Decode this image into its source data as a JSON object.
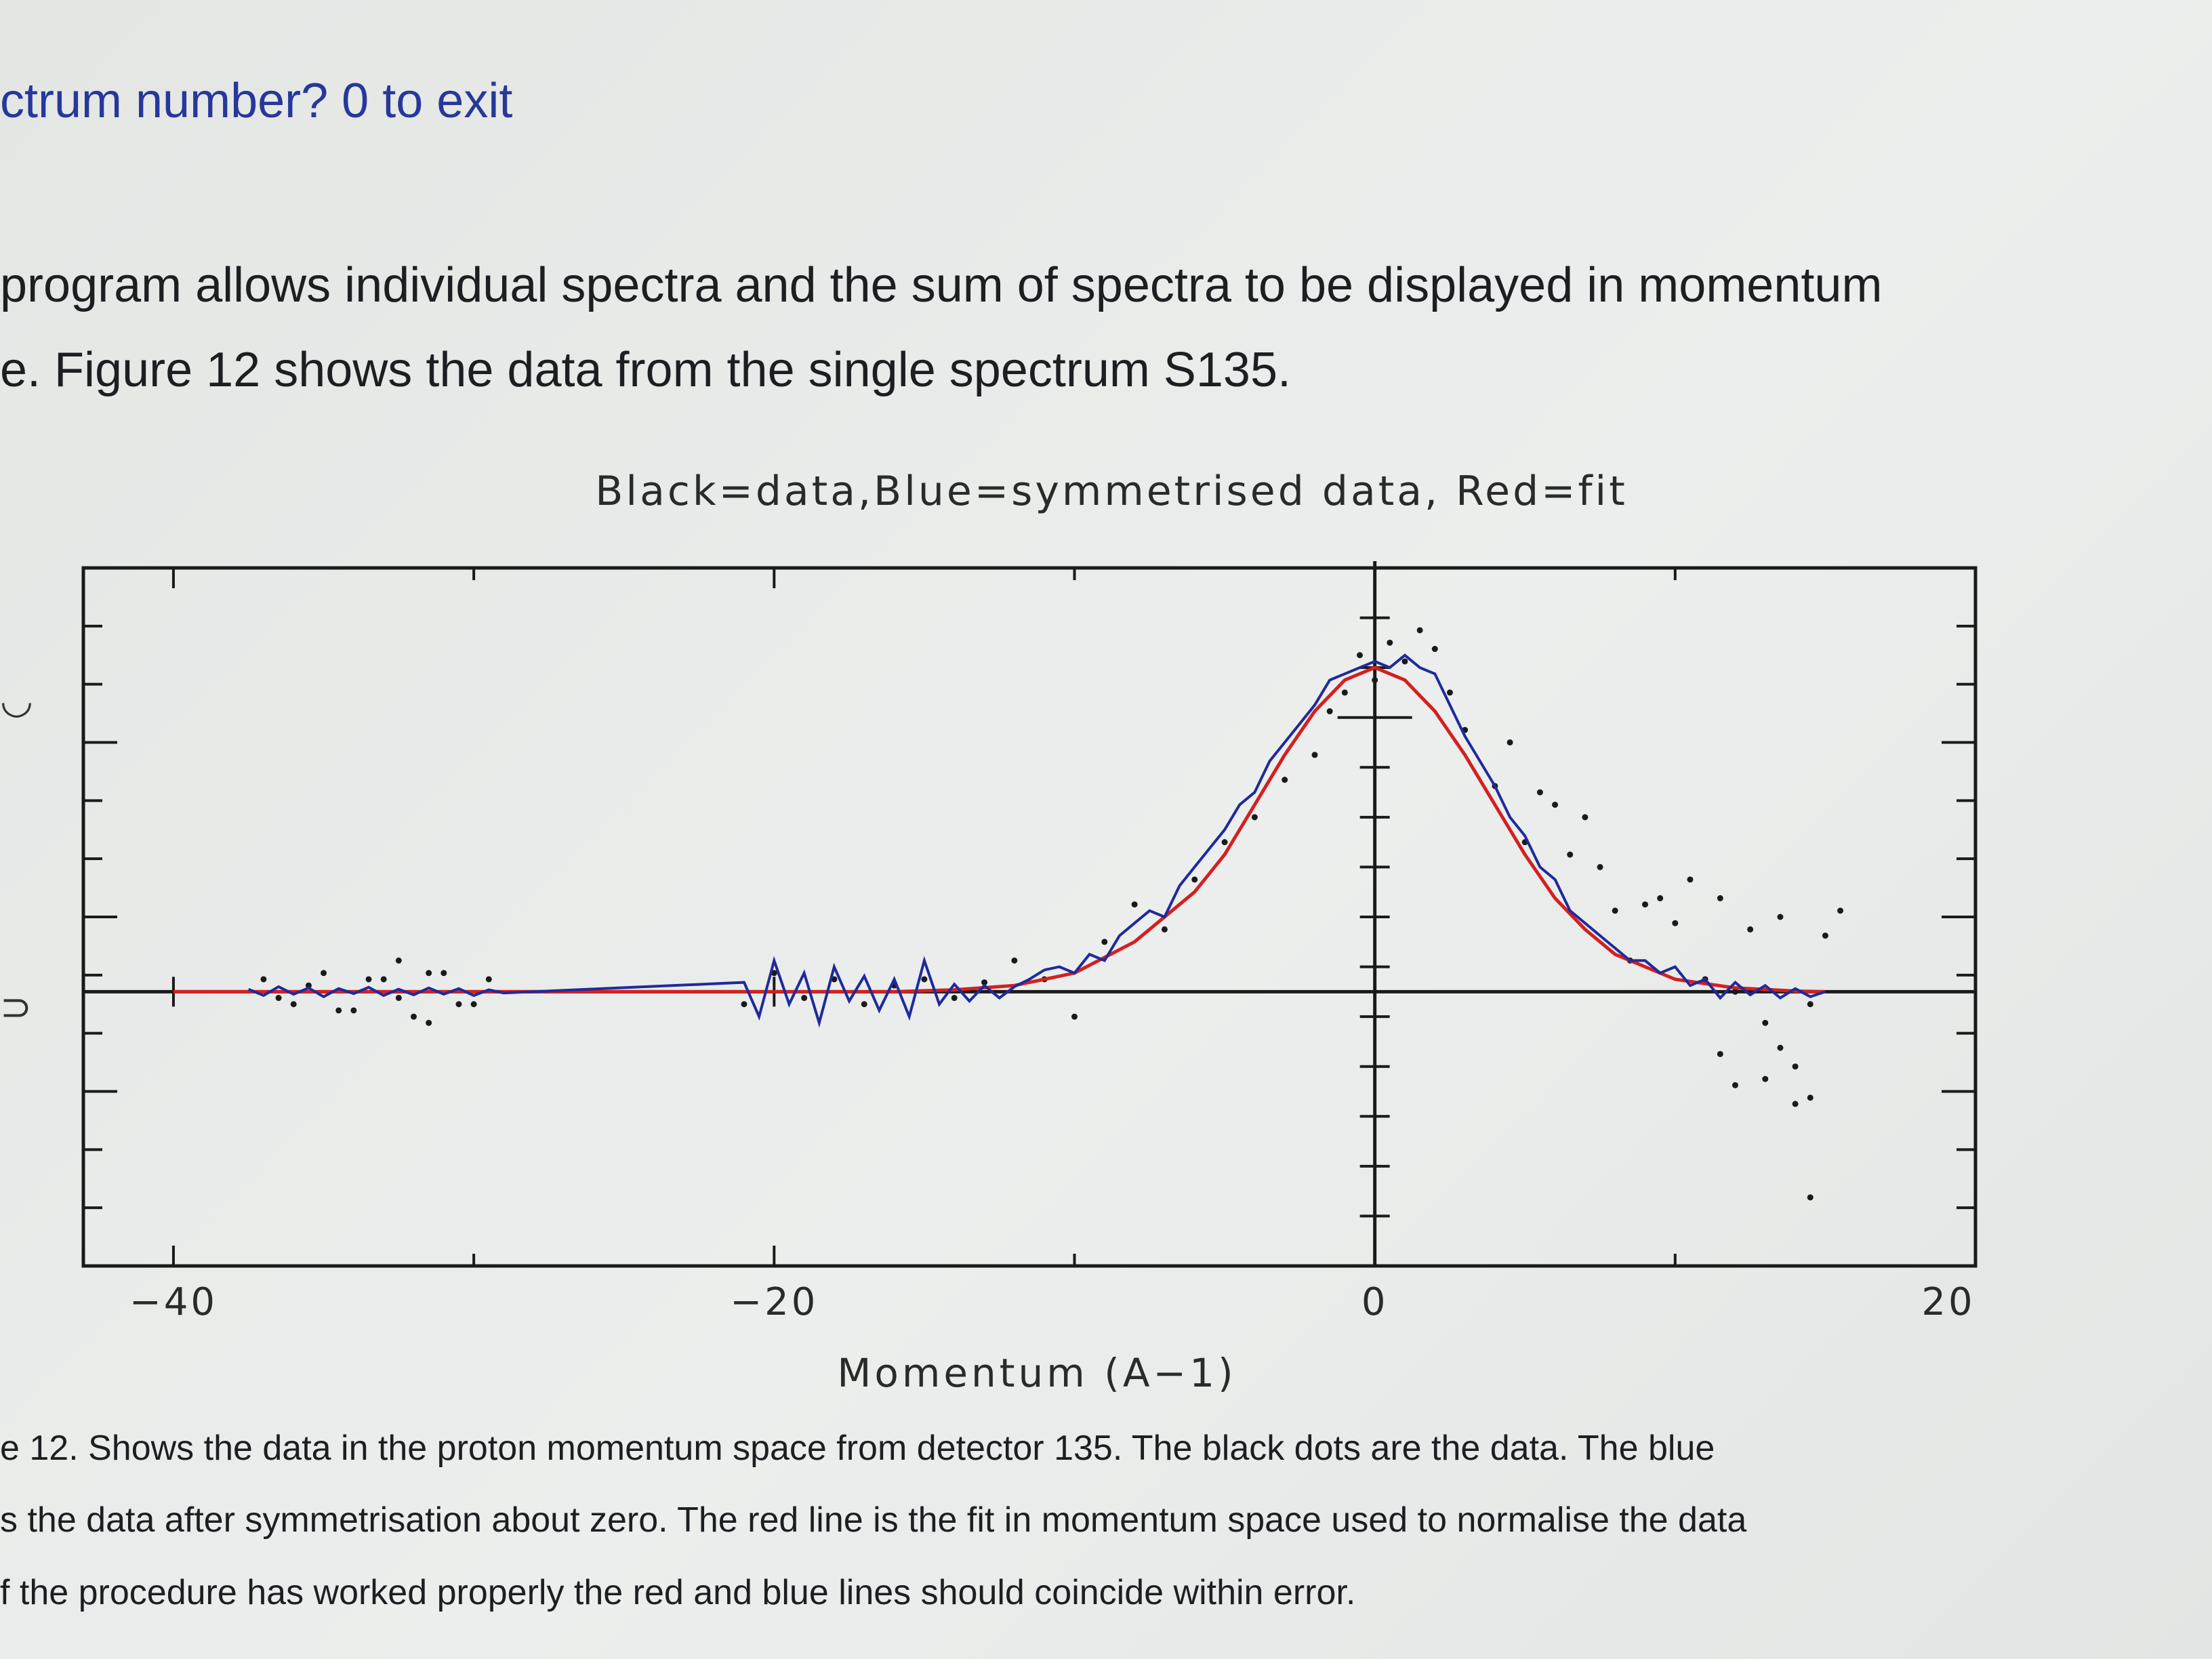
{
  "document": {
    "heading": "ctrum number? 0 to exit",
    "paragraph_lines": [
      "program allows individual spectra and the sum of spectra to be displayed in momentum",
      "e. Figure 12 shows the data from the single spectrum S135."
    ],
    "caption_lines": [
      "e 12. Shows the data in the proton momentum space from detector 135. The black dots are the data. The blue",
      "s the data after symmetrisation about zero. The red line is the fit in momentum space used to normalise the data",
      "f the procedure has worked properly the red and blue lines should coincide within error."
    ]
  },
  "chart_data": {
    "type": "line",
    "title": "Black=data,Blue=symmetrised data, Red=fit",
    "xlabel": "Momentum (A−1)",
    "ylabel": "",
    "xlim": [
      -43,
      20
    ],
    "ylim": [
      -0.44,
      0.68
    ],
    "x_ticks": [
      -40,
      -20,
      0,
      20
    ],
    "x_tick_labels": [
      "−40",
      "−20",
      "0",
      "20"
    ],
    "grid": false,
    "legend": "none",
    "colors": {
      "data": "#1a1a1a",
      "symmetrised": "#1f2a9c",
      "fit": "#d42020",
      "axes": "#1a1a1a"
    },
    "series": [
      {
        "name": "Red=fit",
        "color": "#d42020",
        "x": [
          -40,
          -34,
          -30,
          -25,
          -20,
          -16,
          -14,
          -12,
          -10,
          -8,
          -6,
          -5,
          -4,
          -3,
          -2,
          -1,
          0,
          1,
          2,
          3,
          4,
          5,
          6,
          7,
          8,
          10,
          12,
          14,
          15
        ],
        "y": [
          0,
          0,
          0,
          0,
          0,
          0,
          0.003,
          0.01,
          0.03,
          0.08,
          0.16,
          0.22,
          0.3,
          0.38,
          0.45,
          0.5,
          0.52,
          0.5,
          0.45,
          0.38,
          0.3,
          0.22,
          0.15,
          0.1,
          0.06,
          0.02,
          0.006,
          0.001,
          0
        ]
      },
      {
        "name": "Blue=symmetrised data",
        "color": "#1f2a9c",
        "x": [
          -37.5,
          -37,
          -36.5,
          -36,
          -35.5,
          -35,
          -34.5,
          -34,
          -33.5,
          -33,
          -32.5,
          -32,
          -31.5,
          -31,
          -30.5,
          -30,
          -29.5,
          -29,
          -21,
          -20.5,
          -20,
          -19.5,
          -19,
          -18.5,
          -18,
          -17.5,
          -17,
          -16.5,
          -16,
          -15.5,
          -15,
          -14.5,
          -14,
          -13.5,
          -13,
          -12.5,
          -12,
          -11.5,
          -11,
          -10.5,
          -10,
          -9.5,
          -9,
          -8.5,
          -8,
          -7.5,
          -7,
          -6.5,
          -6,
          -5.5,
          -5,
          -4.5,
          -4,
          -3.5,
          -3,
          -2.5,
          -2,
          -1.5,
          -1,
          -0.5,
          0,
          0.5,
          1,
          1.5,
          2,
          2.5,
          3,
          3.5,
          4,
          4.5,
          5,
          5.5,
          6,
          6.5,
          7,
          7.5,
          8,
          8.5,
          9,
          9.5,
          10,
          10.5,
          11,
          11.5,
          12,
          12.5,
          13,
          13.5,
          14,
          14.5,
          15
        ],
        "y": [
          0.004,
          -0.006,
          0.008,
          -0.004,
          0.006,
          -0.008,
          0.005,
          -0.003,
          0.007,
          -0.006,
          0.004,
          -0.005,
          0.006,
          -0.004,
          0.005,
          -0.006,
          0.003,
          -0.002,
          0.015,
          -0.04,
          0.05,
          -0.02,
          0.03,
          -0.05,
          0.04,
          -0.015,
          0.025,
          -0.03,
          0.02,
          -0.04,
          0.05,
          -0.02,
          0.012,
          -0.015,
          0.01,
          -0.01,
          0.008,
          0.02,
          0.035,
          0.04,
          0.03,
          0.06,
          0.05,
          0.09,
          0.11,
          0.13,
          0.12,
          0.17,
          0.2,
          0.23,
          0.26,
          0.3,
          0.32,
          0.37,
          0.4,
          0.43,
          0.46,
          0.5,
          0.51,
          0.52,
          0.53,
          0.52,
          0.54,
          0.52,
          0.51,
          0.46,
          0.41,
          0.37,
          0.33,
          0.28,
          0.25,
          0.2,
          0.18,
          0.13,
          0.11,
          0.09,
          0.07,
          0.05,
          0.05,
          0.03,
          0.04,
          0.01,
          0.02,
          -0.01,
          0.015,
          -0.005,
          0.01,
          -0.01,
          0.005,
          -0.008,
          0
        ]
      },
      {
        "name": "Black=data",
        "color": "#1a1a1a",
        "x": [
          -37,
          -36,
          -35,
          -34,
          -33,
          -32,
          -31,
          -30,
          -36.5,
          -35.5,
          -34.5,
          -33.5,
          -32.5,
          -31.5,
          -30.5,
          -29.5,
          -32.5,
          -31.5,
          -21,
          -20,
          -19,
          -18,
          -17,
          -16,
          -15,
          -14,
          -13,
          -12,
          -11,
          -10,
          -9,
          -8,
          -7,
          -6,
          -5,
          -4,
          -3,
          -2,
          -1,
          0,
          1,
          2,
          3,
          4,
          5,
          6,
          7,
          8,
          9,
          10,
          11,
          12,
          13,
          14,
          -1.5,
          -0.5,
          0.5,
          1.5,
          2.5,
          4.5,
          5.5,
          6.5,
          7.5,
          8.5,
          9.5,
          10.5,
          11.5,
          12.5,
          13.5,
          14.5,
          15,
          15.5,
          14,
          13,
          12,
          11.5,
          14.5,
          13.5,
          14.5
        ],
        "y": [
          0.02,
          -0.02,
          0.03,
          -0.03,
          0.02,
          -0.04,
          0.03,
          -0.02,
          -0.01,
          0.01,
          -0.03,
          0.02,
          -0.01,
          0.03,
          -0.02,
          0.02,
          0.05,
          -0.05,
          -0.02,
          0.03,
          -0.01,
          0.02,
          -0.02,
          0.01,
          0.02,
          -0.01,
          0.015,
          0.05,
          0.02,
          -0.04,
          0.08,
          0.14,
          0.1,
          0.18,
          0.24,
          0.28,
          0.34,
          0.38,
          0.48,
          0.5,
          0.53,
          0.55,
          0.42,
          0.33,
          0.24,
          0.3,
          0.28,
          0.13,
          0.14,
          0.11,
          0.02,
          0.0,
          -0.05,
          -0.12,
          0.45,
          0.54,
          0.56,
          0.58,
          0.48,
          0.4,
          0.32,
          0.22,
          0.2,
          0.05,
          0.15,
          0.18,
          0.15,
          0.1,
          0.12,
          -0.02,
          0.09,
          0.13,
          -0.18,
          -0.14,
          -0.15,
          -0.1,
          -0.17,
          -0.09,
          -0.33
        ],
        "x_tick_note": ""
      }
    ]
  }
}
